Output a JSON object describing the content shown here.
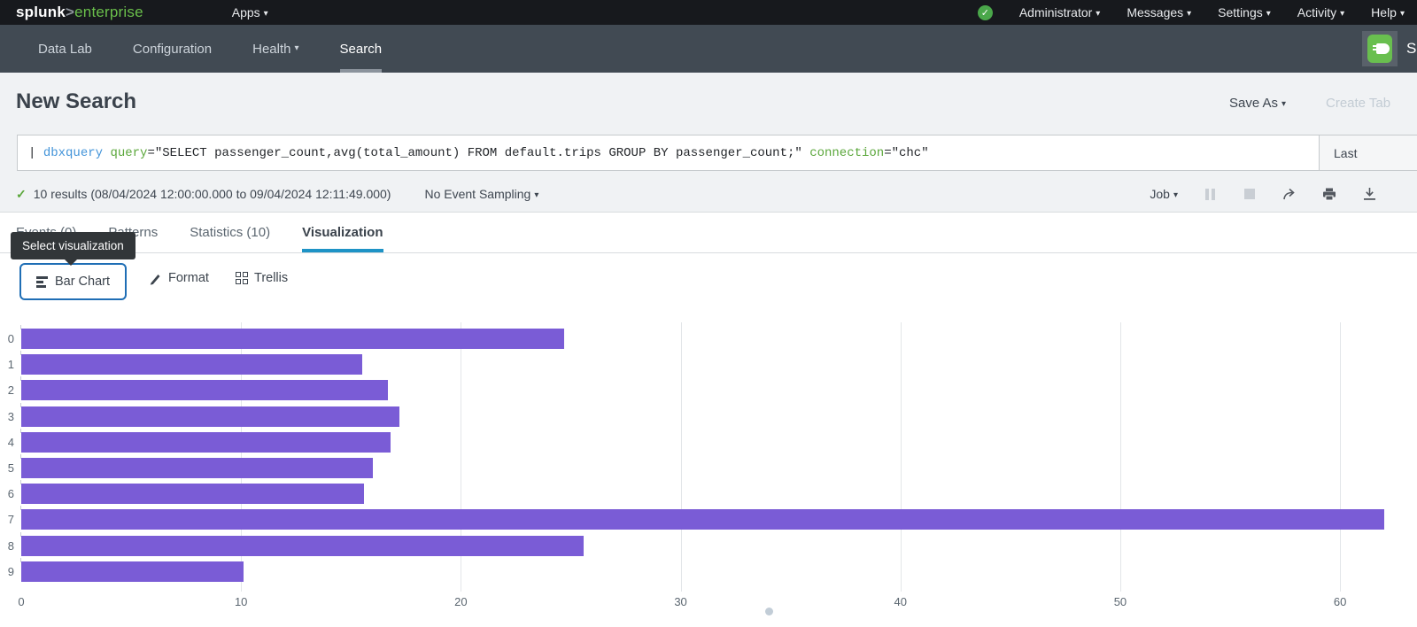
{
  "topbar": {
    "logo": {
      "brand": "splunk",
      "gt": ">",
      "product": "enterprise"
    },
    "apps_label": "Apps",
    "menus": [
      "Administrator",
      "Messages",
      "Settings",
      "Activity",
      "Help"
    ]
  },
  "app_nav": {
    "items": [
      {
        "label": "Data Lab",
        "active": false,
        "caret": false
      },
      {
        "label": "Configuration",
        "active": false,
        "caret": false
      },
      {
        "label": "Health",
        "active": false,
        "caret": true
      },
      {
        "label": "Search",
        "active": true,
        "caret": false
      }
    ],
    "clipped_app_name": "S"
  },
  "header": {
    "title": "New Search",
    "save_as_label": "Save As",
    "create_table_label": "Create Tab"
  },
  "search_bar": {
    "tokens": [
      {
        "text": "| ",
        "type": "plain"
      },
      {
        "text": "dbxquery",
        "type": "command"
      },
      {
        "text": " ",
        "type": "plain"
      },
      {
        "text": "query",
        "type": "param"
      },
      {
        "text": "=\"SELECT passenger_count,avg(total_amount) FROM default.trips GROUP BY passenger_count;\"",
        "type": "plain"
      },
      {
        "text": " ",
        "type": "plain"
      },
      {
        "text": "connection",
        "type": "param"
      },
      {
        "text": "=\"chc\"",
        "type": "plain"
      }
    ],
    "time_range_label": "Last"
  },
  "results_bar": {
    "summary": "10 results (08/04/2024 12:00:00.000 to 09/04/2024 12:11:49.000)",
    "sampling_label": "No Event Sampling",
    "job_label": "Job"
  },
  "tabs": [
    {
      "label": "Events (0)",
      "active": false
    },
    {
      "label": "Patterns",
      "active": false
    },
    {
      "label": "Statistics (10)",
      "active": false
    },
    {
      "label": "Visualization",
      "active": true
    }
  ],
  "tooltip": {
    "text": "Select visualization"
  },
  "viz_controls": {
    "chart_type_label": "Bar Chart",
    "format_label": "Format",
    "trellis_label": "Trellis"
  },
  "accent_colors": {
    "bar_purple": "#7a5cd6",
    "tab_underline_blue": "#1e93c6",
    "button_focus_blue": "#1f6eb5",
    "splunk_green": "#6abf4b",
    "success_green": "#5ba73b"
  },
  "chart_data": {
    "type": "bar",
    "orientation": "horizontal",
    "title": "",
    "xlabel": "",
    "ylabel": "",
    "categories": [
      "0",
      "1",
      "2",
      "3",
      "4",
      "5",
      "6",
      "7",
      "8",
      "9"
    ],
    "values": [
      24.7,
      15.5,
      16.7,
      17.2,
      16.8,
      16.0,
      15.6,
      62.0,
      25.6,
      10.1
    ],
    "xticks": [
      0,
      10,
      20,
      30,
      40,
      50,
      60
    ],
    "xlim": [
      0,
      63.5
    ],
    "grid": true,
    "legend": false,
    "bar_color": "#7a5cd6"
  }
}
